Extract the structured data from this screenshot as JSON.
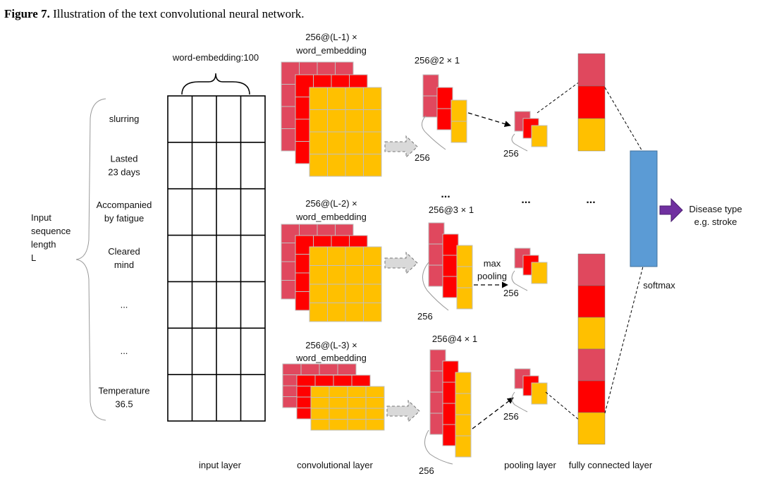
{
  "caption": {
    "label": "Figure 7.",
    "text": "Illustration of the text convolutional neural network."
  },
  "colors": {
    "pink": "#E0485E",
    "red": "#FF0000",
    "orange": "#FFC000",
    "blue": "#5B9BD5",
    "purple": "#7030A0",
    "grid": "#BFBFBF"
  },
  "input": {
    "embedding_label": "word-embedding:100",
    "sequence_label": [
      "Input",
      "sequence",
      "length",
      "L"
    ],
    "words": [
      [
        "slurring"
      ],
      [
        "Lasted",
        "23 days"
      ],
      [
        "Accompanied",
        "by fatigue"
      ],
      [
        "Cleared",
        "mind"
      ],
      [
        "..."
      ],
      [
        "..."
      ],
      [
        "Temperature",
        "36.5"
      ]
    ]
  },
  "conv": {
    "blocks": [
      {
        "label1": "256@(L-1) ×",
        "label2": "word_embedding"
      },
      {
        "label1": "256@(L-2) ×",
        "label2": "word_embedding"
      },
      {
        "label1": "256@(L-3) ×",
        "label2": "word_embedding"
      }
    ]
  },
  "featuremaps": {
    "labels": [
      "256@2 × 1",
      "256@3 × 1",
      "256@4 × 1"
    ],
    "count_label": "256",
    "ellipsis": "..."
  },
  "pooling": {
    "label1": "max",
    "label2": "pooling",
    "count_label": "256",
    "ellipsis": "..."
  },
  "fc": {
    "ellipsis": "..."
  },
  "softmax": {
    "label": "softmax"
  },
  "output": {
    "line1": "Disease type",
    "line2": "e.g. stroke"
  },
  "layers": {
    "input": "input layer",
    "conv": "convolutional layer",
    "pooling": "pooling layer",
    "fc": "fully connected layer"
  }
}
